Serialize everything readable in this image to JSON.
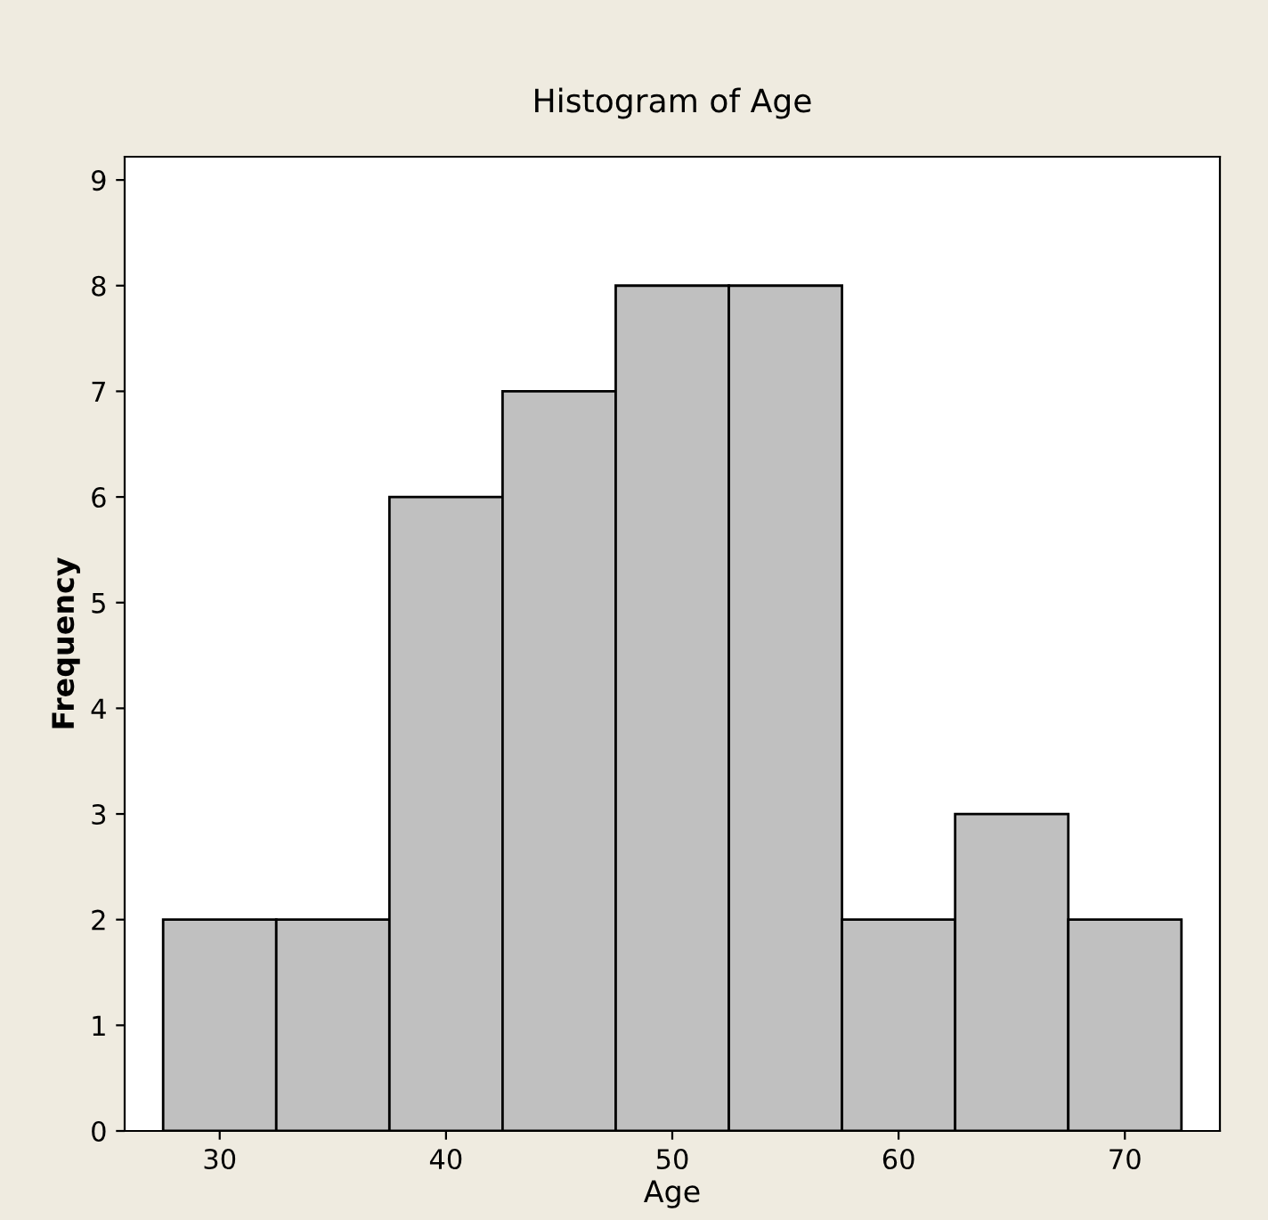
{
  "chart_data": {
    "type": "histogram",
    "title": "Histogram of Age",
    "xlabel": "Age",
    "ylabel": "Frequency",
    "bins": [
      27.5,
      32.5,
      37.5,
      42.5,
      47.5,
      52.5,
      57.5,
      62.5,
      67.5,
      72.5
    ],
    "values": [
      2,
      2,
      6,
      7,
      8,
      8,
      2,
      3,
      2
    ],
    "color": "#c0c0c0",
    "xlim": [
      25.8,
      74.2
    ],
    "xticks": [
      30,
      40,
      50,
      60,
      70
    ],
    "ylim": [
      0,
      9.22
    ],
    "yticks": [
      0,
      1,
      2,
      3,
      4,
      5,
      6,
      7,
      8,
      9
    ],
    "grid": false
  }
}
